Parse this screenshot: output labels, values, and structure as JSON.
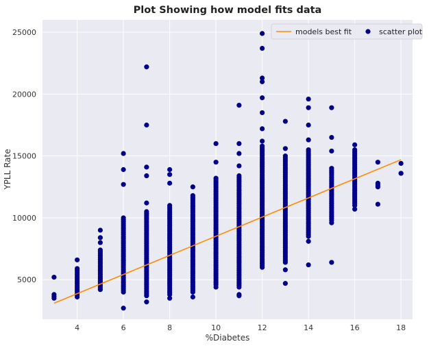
{
  "chart_data": {
    "type": "scatter",
    "title": "Plot Showing how model fits data",
    "xlabel": "%Diabetes",
    "ylabel": "YPLL Rate",
    "xlim": [
      2.5,
      18.5
    ],
    "ylim": [
      1800,
      26000
    ],
    "xticks": [
      4,
      6,
      8,
      10,
      12,
      14,
      16,
      18
    ],
    "yticks": [
      5000,
      10000,
      15000,
      20000,
      25000
    ],
    "grid": true,
    "legend_position": "top-right",
    "colors": {
      "scatter": "#00008B",
      "fit": "#FF8C00",
      "background": "#EAEAF2"
    },
    "series": [
      {
        "name": "models best fit",
        "kind": "line",
        "x": [
          3,
          18
        ],
        "y": [
          3100,
          14700
        ]
      },
      {
        "name": "scatter plot",
        "kind": "scatter",
        "columns": [
          {
            "x": 3,
            "ymin": 3500,
            "ymax": 3800,
            "extras": [
              5200
            ]
          },
          {
            "x": 4,
            "ymin": 3600,
            "ymax": 5900,
            "extras": [
              6600
            ]
          },
          {
            "x": 5,
            "ymin": 4200,
            "ymax": 7400,
            "extras": [
              8000,
              8400,
              9000
            ]
          },
          {
            "x": 6,
            "ymin": 4000,
            "ymax": 10000,
            "extras": [
              2700,
              12700,
              13900,
              15200
            ]
          },
          {
            "x": 7,
            "ymin": 3700,
            "ymax": 10500,
            "extras": [
              3200,
              11200,
              13400,
              14100,
              17500,
              22200
            ]
          },
          {
            "x": 8,
            "ymin": 3800,
            "ymax": 11000,
            "extras": [
              3500,
              12800,
              13500,
              13900
            ]
          },
          {
            "x": 9,
            "ymin": 4000,
            "ymax": 11800,
            "extras": [
              3600,
              12500
            ]
          },
          {
            "x": 10,
            "ymin": 4600,
            "ymax": 13200,
            "extras": [
              4400,
              14500,
              16000
            ]
          },
          {
            "x": 11,
            "ymin": 4400,
            "ymax": 13400,
            "extras": [
              3700,
              3800,
              14200,
              15200,
              16000,
              19100
            ]
          },
          {
            "x": 12,
            "ymin": 6000,
            "ymax": 15800,
            "extras": [
              16200,
              17200,
              18500,
              19700,
              21000,
              21300,
              23700,
              24900
            ]
          },
          {
            "x": 13,
            "ymin": 6400,
            "ymax": 15000,
            "extras": [
              4700,
              5800,
              15600,
              17800
            ]
          },
          {
            "x": 14,
            "ymin": 8500,
            "ymax": 15500,
            "extras": [
              6200,
              8100,
              16300,
              17500,
              18900,
              19600
            ]
          },
          {
            "x": 15,
            "ymin": 9800,
            "ymax": 14000,
            "extras": [
              6400,
              9600,
              15400,
              16500,
              18900
            ]
          },
          {
            "x": 16,
            "ymin": 11000,
            "ymax": 15500,
            "extras": [
              10700,
              15900
            ]
          },
          {
            "x": 17,
            "ymin": 12500,
            "ymax": 12800,
            "extras": [
              11100,
              14500
            ]
          },
          {
            "x": 18,
            "ymin": 13600,
            "ymax": 13600,
            "extras": [
              14400
            ]
          }
        ]
      }
    ]
  }
}
